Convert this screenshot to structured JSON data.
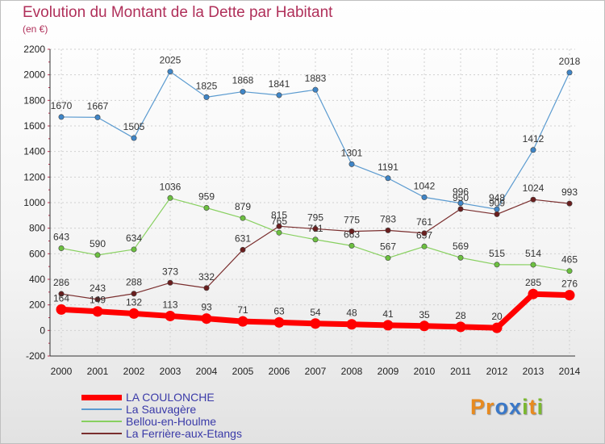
{
  "header": {
    "title": "Evolution du Montant de la Dette par Habitant",
    "unit": "(en €)"
  },
  "logo": {
    "letters": [
      "P",
      "r",
      "o",
      "x",
      "i",
      "t",
      "i"
    ],
    "colors": [
      "#e88a1f",
      "#e88a1f",
      "#3a78c8",
      "#3a78c8",
      "#7bb830",
      "#e88a1f",
      "#7bb830"
    ]
  },
  "chart_data": {
    "type": "line",
    "x": [
      2000,
      2001,
      2002,
      2003,
      2004,
      2005,
      2006,
      2007,
      2008,
      2009,
      2010,
      2011,
      2012,
      2013,
      2014
    ],
    "ylim": [
      -200,
      2200
    ],
    "yticks": [
      -200,
      0,
      200,
      400,
      600,
      800,
      1000,
      1200,
      1400,
      1600,
      1800,
      2000,
      2200
    ],
    "grid": true,
    "legend_position": "bottom",
    "series": [
      {
        "name": "La Sauvagère",
        "color": "#5b9bd0",
        "marker": "#3f86c8",
        "width": 1.2,
        "values": [
          1670,
          1667,
          1505,
          2025,
          1825,
          1868,
          1841,
          1883,
          1301,
          1191,
          1042,
          996,
          948,
          1412,
          2018
        ]
      },
      {
        "name": "Bellou-en-Houlme",
        "color": "#88d060",
        "marker": "#6cc040",
        "width": 1.2,
        "values": [
          643,
          590,
          634,
          1036,
          959,
          879,
          765,
          711,
          663,
          567,
          657,
          569,
          515,
          514,
          465
        ]
      },
      {
        "name": "La Ferrière-aux-Etangs",
        "color": "#7a2e2e",
        "marker": "#6a1e1e",
        "width": 1.2,
        "values": [
          286,
          243,
          288,
          373,
          332,
          631,
          815,
          795,
          775,
          783,
          761,
          950,
          909,
          1024,
          993
        ]
      },
      {
        "name": "LA COULONCHE",
        "color": "#ff0000",
        "marker": "#ff0000",
        "width": 7,
        "values": [
          164,
          149,
          132,
          113,
          93,
          71,
          63,
          54,
          48,
          41,
          35,
          28,
          20,
          285,
          276
        ]
      }
    ],
    "legend": [
      {
        "name": "LA COULONCHE",
        "color": "#ff0000",
        "width": 7
      },
      {
        "name": "La Sauvagère",
        "color": "#5b9bd0",
        "width": 2
      },
      {
        "name": "Bellou-en-Houlme",
        "color": "#88d060",
        "width": 2
      },
      {
        "name": "La Ferrière-aux-Etangs",
        "color": "#7a2e2e",
        "width": 2
      }
    ]
  }
}
